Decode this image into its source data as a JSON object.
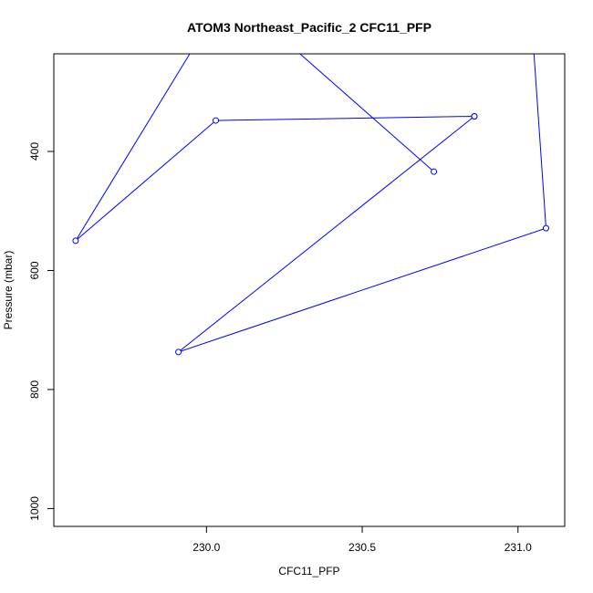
{
  "chart_data": {
    "type": "line",
    "title": "ATOM3 Northeast_Pacific_2 CFC11_PFP",
    "xlabel": "CFC11_PFP",
    "ylabel": "Pressure (mbar)",
    "xlim": [
      229.51,
      231.15
    ],
    "ylim": [
      1030,
      236
    ],
    "y_reversed": true,
    "x_ticks": [
      230.0,
      230.5,
      231.0
    ],
    "x_tick_labels": [
      "230.0",
      "230.5",
      "231.0"
    ],
    "y_ticks": [
      400,
      600,
      800,
      1000
    ],
    "y_tick_labels": [
      "400",
      "600",
      "800",
      "1000"
    ],
    "series": [
      {
        "color": "#0000ff",
        "marker": "open-circle",
        "x": [
          230.73,
          230.07,
          229.58,
          230.03,
          230.86,
          230.86,
          229.91,
          231.09,
          231.04,
          230.7
        ],
        "y": [
          434,
          130,
          550,
          348,
          341,
          341,
          737,
          529,
          150,
          150
        ],
        "show_marker": [
          true,
          false,
          true,
          true,
          true,
          true,
          true,
          true,
          false,
          false
        ]
      }
    ],
    "grid": false,
    "legend": "none"
  }
}
